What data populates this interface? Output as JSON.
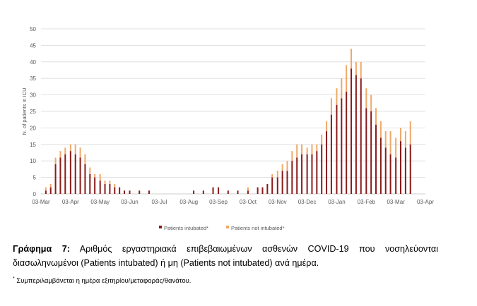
{
  "chart_data": {
    "type": "bar",
    "stacked": true,
    "ylabel": "N. of patients in ICU",
    "xlabel": "",
    "ylim": [
      0,
      50
    ],
    "yticks": [
      0,
      5,
      10,
      15,
      20,
      25,
      30,
      35,
      40,
      45,
      50
    ],
    "grid": true,
    "legend_position": "bottom",
    "x_ticks": [
      "03-Mar",
      "03-Apr",
      "03-May",
      "03-Jun",
      "03-Jul",
      "03-Aug",
      "03-Sep",
      "03-Oct",
      "03-Nov",
      "03-Dec",
      "03-Jan",
      "03-Feb",
      "03-Mar",
      "03-Apr"
    ],
    "series": [
      {
        "name": "Patients intubated*",
        "color": "#8b1a1a",
        "points": [
          [
            "03-Mar",
            0
          ],
          [
            "08-Mar",
            1
          ],
          [
            "13-Mar",
            2
          ],
          [
            "18-Mar",
            9
          ],
          [
            "23-Mar",
            11
          ],
          [
            "28-Mar",
            12
          ],
          [
            "03-Apr",
            13
          ],
          [
            "08-Apr",
            12
          ],
          [
            "13-Apr",
            11
          ],
          [
            "18-Apr",
            9
          ],
          [
            "23-Apr",
            6
          ],
          [
            "28-Apr",
            5
          ],
          [
            "03-May",
            4
          ],
          [
            "08-May",
            3
          ],
          [
            "13-May",
            3
          ],
          [
            "18-May",
            2
          ],
          [
            "23-May",
            2
          ],
          [
            "28-May",
            1
          ],
          [
            "03-Jun",
            1
          ],
          [
            "13-Jun",
            1
          ],
          [
            "23-Jun",
            1
          ],
          [
            "03-Jul",
            0
          ],
          [
            "03-Aug",
            0
          ],
          [
            "08-Aug",
            1
          ],
          [
            "18-Aug",
            1
          ],
          [
            "28-Aug",
            2
          ],
          [
            "03-Sep",
            2
          ],
          [
            "13-Sep",
            1
          ],
          [
            "23-Sep",
            1
          ],
          [
            "03-Oct",
            1
          ],
          [
            "13-Oct",
            2
          ],
          [
            "18-Oct",
            2
          ],
          [
            "23-Oct",
            3
          ],
          [
            "28-Oct",
            5
          ],
          [
            "03-Nov",
            5
          ],
          [
            "08-Nov",
            7
          ],
          [
            "13-Nov",
            7
          ],
          [
            "18-Nov",
            10
          ],
          [
            "23-Nov",
            11
          ],
          [
            "28-Nov",
            12
          ],
          [
            "03-Dec",
            12
          ],
          [
            "08-Dec",
            12
          ],
          [
            "13-Dec",
            13
          ],
          [
            "18-Dec",
            15
          ],
          [
            "23-Dec",
            19
          ],
          [
            "28-Dec",
            24
          ],
          [
            "03-Jan",
            27
          ],
          [
            "08-Jan",
            29
          ],
          [
            "13-Jan",
            31
          ],
          [
            "18-Jan",
            38
          ],
          [
            "23-Jan",
            36
          ],
          [
            "28-Jan",
            35
          ],
          [
            "03-Feb",
            26
          ],
          [
            "08-Feb",
            25
          ],
          [
            "13-Feb",
            21
          ],
          [
            "18-Feb",
            17
          ],
          [
            "23-Feb",
            14
          ],
          [
            "28-Feb",
            12
          ],
          [
            "03-Mar",
            11
          ],
          [
            "08-Mar",
            16
          ],
          [
            "13-Mar",
            14
          ],
          [
            "18-Mar",
            15
          ]
        ]
      },
      {
        "name": "Patients not intubated*",
        "color": "#f0a868",
        "points": [
          [
            "03-Mar",
            0
          ],
          [
            "08-Mar",
            1
          ],
          [
            "13-Mar",
            1
          ],
          [
            "18-Mar",
            2
          ],
          [
            "23-Mar",
            2
          ],
          [
            "28-Mar",
            2
          ],
          [
            "03-Apr",
            2
          ],
          [
            "08-Apr",
            3
          ],
          [
            "13-Apr",
            3
          ],
          [
            "18-Apr",
            3
          ],
          [
            "23-Apr",
            2
          ],
          [
            "28-Apr",
            1
          ],
          [
            "03-May",
            2
          ],
          [
            "08-May",
            1
          ],
          [
            "13-May",
            1
          ],
          [
            "18-May",
            1
          ],
          [
            "23-May",
            0
          ],
          [
            "28-May",
            0
          ],
          [
            "03-Jun",
            0
          ],
          [
            "13-Jun",
            0
          ],
          [
            "23-Jun",
            0
          ],
          [
            "03-Jul",
            0
          ],
          [
            "03-Aug",
            0
          ],
          [
            "08-Aug",
            0
          ],
          [
            "18-Aug",
            0
          ],
          [
            "28-Aug",
            0
          ],
          [
            "03-Sep",
            0
          ],
          [
            "13-Sep",
            0
          ],
          [
            "23-Sep",
            0
          ],
          [
            "03-Oct",
            1
          ],
          [
            "13-Oct",
            0
          ],
          [
            "18-Oct",
            0
          ],
          [
            "23-Oct",
            0
          ],
          [
            "28-Oct",
            1
          ],
          [
            "03-Nov",
            2
          ],
          [
            "08-Nov",
            2
          ],
          [
            "13-Nov",
            3
          ],
          [
            "18-Nov",
            3
          ],
          [
            "23-Nov",
            4
          ],
          [
            "28-Nov",
            3
          ],
          [
            "03-Dec",
            2
          ],
          [
            "08-Dec",
            3
          ],
          [
            "13-Dec",
            2
          ],
          [
            "18-Dec",
            3
          ],
          [
            "23-Dec",
            3
          ],
          [
            "28-Dec",
            5
          ],
          [
            "03-Jan",
            5
          ],
          [
            "08-Jan",
            6
          ],
          [
            "13-Jan",
            8
          ],
          [
            "18-Jan",
            6
          ],
          [
            "23-Jan",
            4
          ],
          [
            "28-Jan",
            5
          ],
          [
            "03-Feb",
            6
          ],
          [
            "08-Feb",
            5
          ],
          [
            "13-Feb",
            5
          ],
          [
            "18-Feb",
            5
          ],
          [
            "23-Feb",
            5
          ],
          [
            "28-Feb",
            7
          ],
          [
            "03-Mar",
            6
          ],
          [
            "08-Mar",
            4
          ],
          [
            "13-Mar",
            5
          ],
          [
            "18-Mar",
            7
          ]
        ]
      }
    ]
  },
  "caption": {
    "lead": "Γράφημα 7:",
    "line1": "Αριθμός εργαστηριακά επιβεβαιωμένων ασθενών COVID-19 που νοσηλεύονται",
    "line2": "διασωληνωμένοι (Patients intubated) ή μη (Patients not intubated) ανά ημέρα."
  },
  "footnote": {
    "mark": "*",
    "text": "Συμπεριλαμβάνεται η ημέρα εξιτηρίου/μεταφοράς/θανάτου."
  }
}
